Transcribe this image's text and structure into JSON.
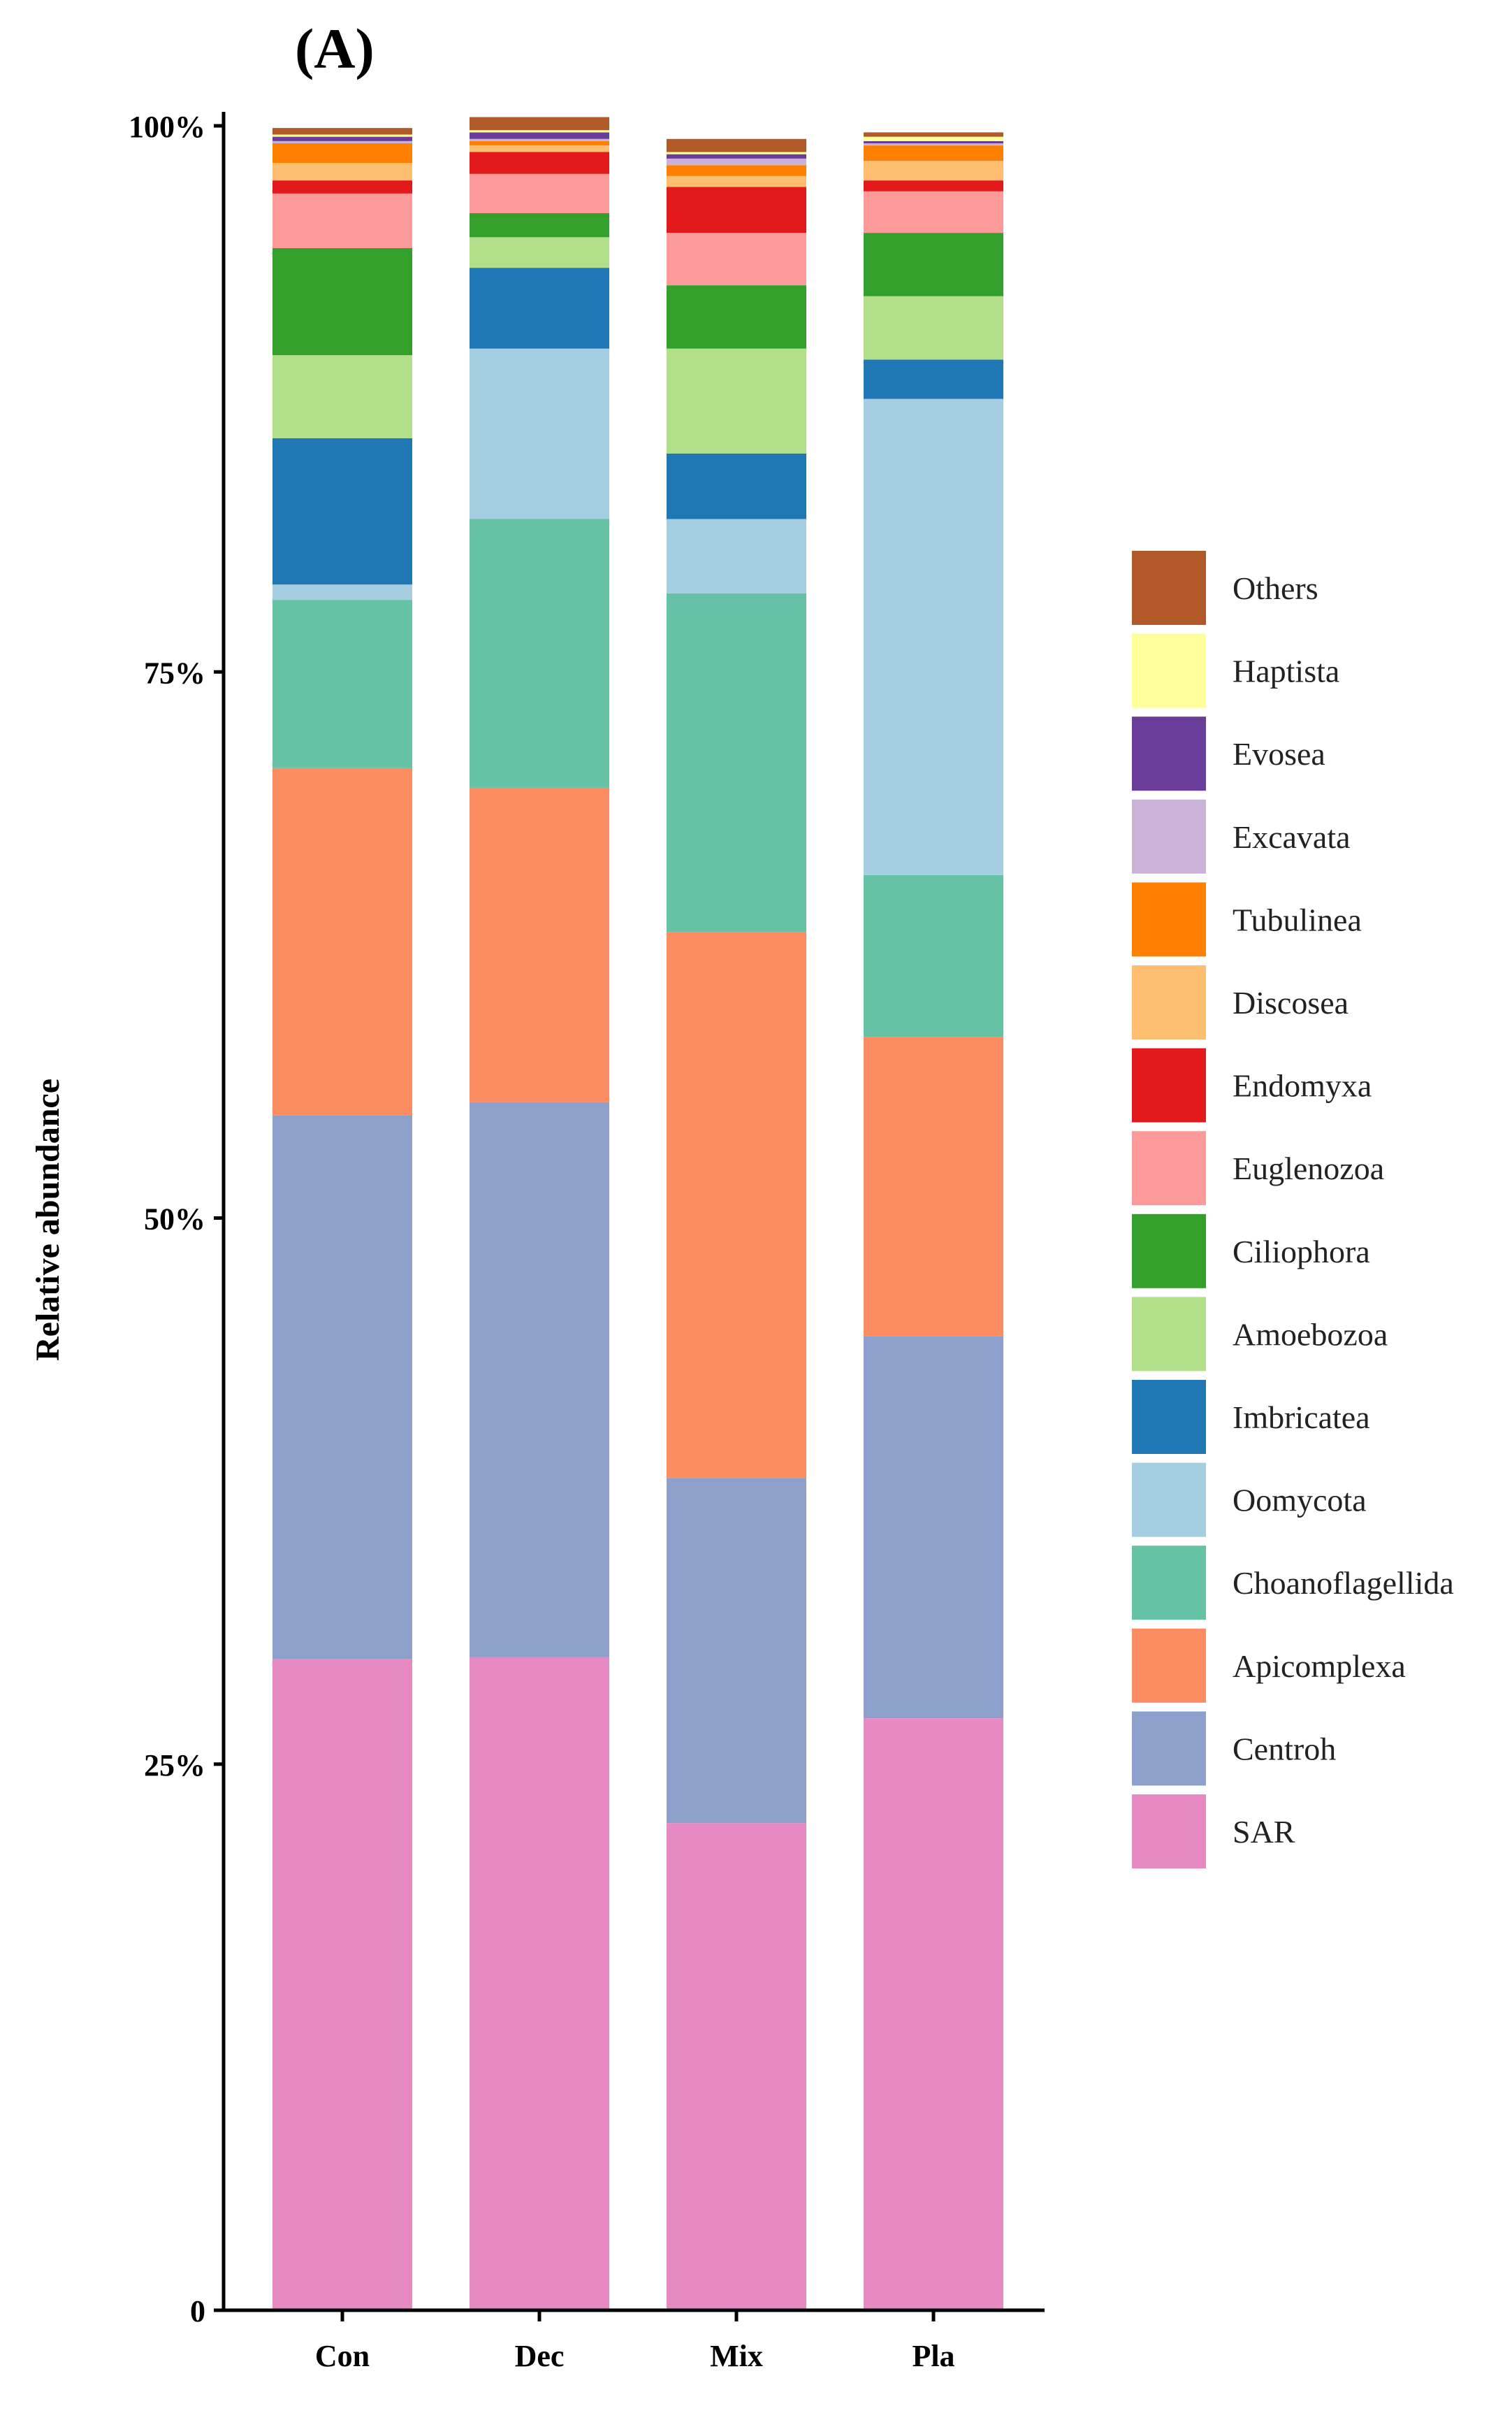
{
  "chart_data": {
    "type": "bar",
    "stacked": true,
    "panel_label": "(A)",
    "title": "",
    "xlabel": "",
    "ylabel": "Relative abundance",
    "ylim": [
      0,
      100
    ],
    "y_ticks": [
      {
        "value": 0,
        "label": "0"
      },
      {
        "value": 25,
        "label": "25%"
      },
      {
        "value": 50,
        "label": "50%"
      },
      {
        "value": 75,
        "label": "75%"
      },
      {
        "value": 100,
        "label": "100%"
      }
    ],
    "categories": [
      "Con",
      "Dec",
      "Mix",
      "Pla"
    ],
    "legend_position": "right",
    "series": [
      {
        "name": "SAR",
        "color": "#E78AC3",
        "values": [
          29.8,
          29.9,
          22.3,
          27.1
        ]
      },
      {
        "name": "Centroh",
        "color": "#8DA0CB",
        "values": [
          24.9,
          25.4,
          15.8,
          17.5
        ]
      },
      {
        "name": "Apicomplexa",
        "color": "#FC8D62",
        "values": [
          15.9,
          14.4,
          25.0,
          13.7
        ]
      },
      {
        "name": "Choanoflagellida",
        "color": "#66C2A5",
        "values": [
          7.7,
          12.3,
          15.5,
          7.4
        ]
      },
      {
        "name": "Oomycota",
        "color": "#A6CEE3",
        "values": [
          0.7,
          7.8,
          3.4,
          21.8
        ]
      },
      {
        "name": "Imbricatea",
        "color": "#1F78B4",
        "values": [
          6.7,
          3.7,
          3.0,
          1.8
        ]
      },
      {
        "name": "Amoebozoa",
        "color": "#B2DF8A",
        "values": [
          3.8,
          1.4,
          4.8,
          2.9
        ]
      },
      {
        "name": "Ciliophora",
        "color": "#33A02C",
        "values": [
          4.9,
          1.1,
          2.9,
          2.9
        ]
      },
      {
        "name": "Euglenozoa",
        "color": "#FB9A99",
        "values": [
          2.5,
          1.8,
          2.4,
          1.9
        ]
      },
      {
        "name": "Endomyxa",
        "color": "#E31A1C",
        "values": [
          0.6,
          1.0,
          2.1,
          0.5
        ]
      },
      {
        "name": "Discosea",
        "color": "#FDBF6F",
        "values": [
          0.8,
          0.3,
          0.5,
          0.9
        ]
      },
      {
        "name": "Tubulinea",
        "color": "#FF7F00",
        "values": [
          0.9,
          0.2,
          0.5,
          0.7
        ]
      },
      {
        "name": "Excavata",
        "color": "#CAB2D6",
        "values": [
          0.1,
          0.1,
          0.3,
          0.1
        ]
      },
      {
        "name": "Evosea",
        "color": "#6A3D9A",
        "values": [
          0.2,
          0.3,
          0.2,
          0.1
        ]
      },
      {
        "name": "Haptista",
        "color": "#FFFF99",
        "values": [
          0.1,
          0.1,
          0.1,
          0.2
        ]
      },
      {
        "name": "Others",
        "color": "#B15928",
        "values": [
          0.3,
          0.6,
          0.6,
          0.2
        ]
      }
    ]
  }
}
